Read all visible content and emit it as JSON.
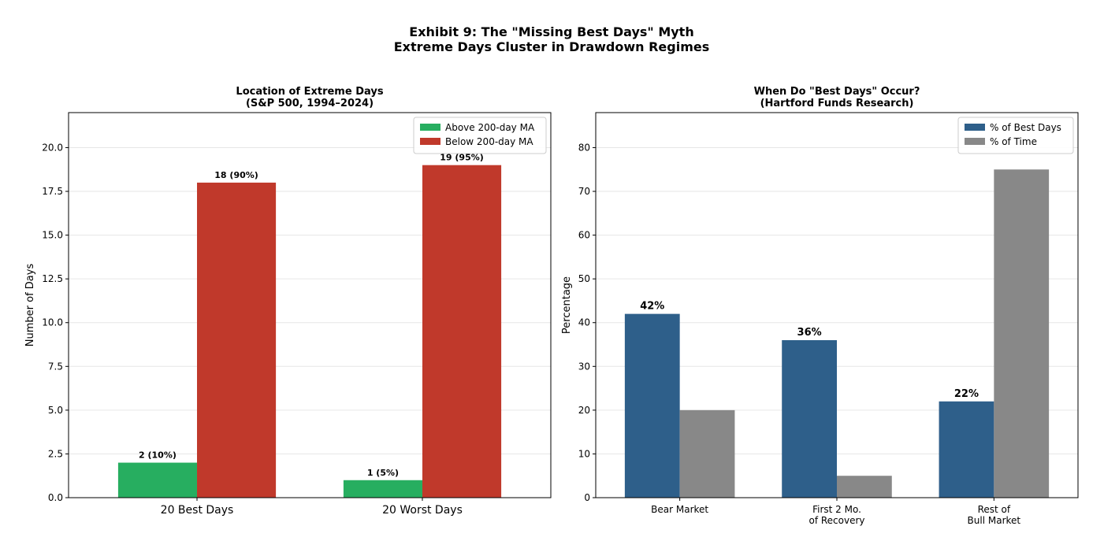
{
  "suptitle": {
    "line1": "Exhibit 9: The \"Missing Best Days\" Myth",
    "line2": "Extreme Days Cluster in Drawdown Regimes"
  },
  "chart_data": [
    {
      "type": "bar",
      "title_line1": "Location of Extreme Days",
      "title_line2": "(S&P 500, 1994–2024)",
      "xlabel": "",
      "ylabel": "Number of Days",
      "ylim": [
        0,
        22
      ],
      "yticks": [
        0,
        2.5,
        5,
        7.5,
        10,
        12.5,
        15,
        17.5,
        20
      ],
      "ytick_labels": [
        "0.0",
        "2.5",
        "5.0",
        "7.5",
        "10.0",
        "12.5",
        "15.0",
        "17.5",
        "20.0"
      ],
      "grid": true,
      "legend_position": "top-right",
      "categories": [
        [
          "20 Best Days"
        ],
        [
          "20 Worst Days"
        ]
      ],
      "series": [
        {
          "name": "Above 200-day MA",
          "color": "#27ae60",
          "values": [
            2,
            1
          ],
          "labels": [
            "2 (10%)",
            "1 (5%)"
          ]
        },
        {
          "name": "Below 200-day MA",
          "color": "#c0392b",
          "values": [
            18,
            19
          ],
          "labels": [
            "18 (90%)",
            "19 (95%)"
          ]
        }
      ]
    },
    {
      "type": "bar",
      "title_line1": "When Do \"Best Days\" Occur?",
      "title_line2": "(Hartford Funds Research)",
      "xlabel": "",
      "ylabel": "Percentage",
      "ylim": [
        0,
        88
      ],
      "yticks": [
        0,
        10,
        20,
        30,
        40,
        50,
        60,
        70,
        80
      ],
      "ytick_labels": [
        "0",
        "10",
        "20",
        "30",
        "40",
        "50",
        "60",
        "70",
        "80"
      ],
      "grid": true,
      "legend_position": "top-right",
      "categories": [
        [
          "Bear Market"
        ],
        [
          "First 2 Mo.",
          "of Recovery"
        ],
        [
          "Rest of",
          "Bull Market"
        ]
      ],
      "series": [
        {
          "name": "% of Best Days",
          "color": "#2e5f8a",
          "values": [
            42,
            36,
            22
          ],
          "labels": [
            "42%",
            "36%",
            "22%"
          ]
        },
        {
          "name": "% of Time",
          "color": "#888888",
          "values": [
            20,
            5,
            75
          ],
          "labels": [
            "",
            "",
            ""
          ]
        }
      ]
    }
  ]
}
